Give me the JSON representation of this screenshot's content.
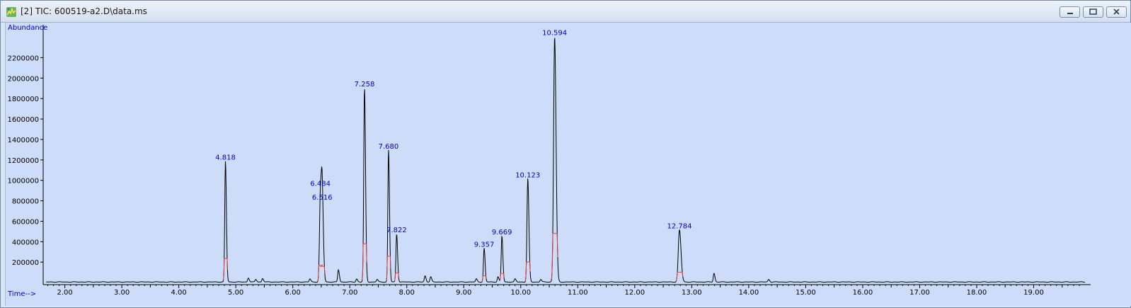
{
  "window": {
    "title": "[2] TIC: 600519-a2.D\\data.ms",
    "icon": "chromatogram-app-icon",
    "controls": [
      "minimize-icon",
      "maximize-icon",
      "close-icon"
    ]
  },
  "colors": {
    "background": "#cddcf8",
    "trace": "#000000",
    "baseline_marks": "#e04040",
    "labels": "#0000c8"
  },
  "chart_data": {
    "type": "line",
    "title": "",
    "xlabel": "Time-->",
    "ylabel": "Abundance",
    "xlim": [
      1.62,
      19.95
    ],
    "ylim": [
      -20000,
      2480000
    ],
    "x_ticks": [
      "2.00",
      "3.00",
      "4.00",
      "5.00",
      "6.00",
      "7.00",
      "8.00",
      "9.00",
      "10.00",
      "11.00",
      "12.00",
      "13.00",
      "14.00",
      "15.00",
      "16.00",
      "17.00",
      "18.00",
      "19.00"
    ],
    "x_tick_values": [
      2,
      3,
      4,
      5,
      6,
      7,
      8,
      9,
      10,
      11,
      12,
      13,
      14,
      15,
      16,
      17,
      18,
      19
    ],
    "y_ticks": [
      "200000",
      "400000",
      "600000",
      "800000",
      "1000000",
      "1200000",
      "1400000",
      "1600000",
      "1800000",
      "2000000",
      "2200000"
    ],
    "y_tick_values": [
      200000,
      400000,
      600000,
      800000,
      1000000,
      1200000,
      1400000,
      1600000,
      1800000,
      2000000,
      2200000
    ],
    "labeled_peaks": [
      {
        "rt": 4.818,
        "label": "4.818",
        "height": 1180000,
        "width": 0.012
      },
      {
        "rt": 6.484,
        "label": "6.484",
        "height": 850000,
        "width": 0.015
      },
      {
        "rt": 6.516,
        "label": "6.516",
        "height": 790000,
        "width": 0.015
      },
      {
        "rt": 7.258,
        "label": "7.258",
        "height": 1900000,
        "width": 0.013
      },
      {
        "rt": 7.68,
        "label": "7.680",
        "height": 1290000,
        "width": 0.012
      },
      {
        "rt": 7.822,
        "label": "7.822",
        "height": 470000,
        "width": 0.012
      },
      {
        "rt": 9.357,
        "label": "9.357",
        "height": 330000,
        "width": 0.012
      },
      {
        "rt": 9.669,
        "label": "9.669",
        "height": 450000,
        "width": 0.012
      },
      {
        "rt": 10.123,
        "label": "10.123",
        "height": 1010000,
        "width": 0.014
      },
      {
        "rt": 10.594,
        "label": "10.594",
        "height": 2400000,
        "width": 0.018
      },
      {
        "rt": 12.784,
        "label": "12.784",
        "height": 510000,
        "width": 0.02
      }
    ],
    "minor_peaks": [
      {
        "rt": 5.22,
        "height": 40000
      },
      {
        "rt": 5.35,
        "height": 25000
      },
      {
        "rt": 5.47,
        "height": 35000
      },
      {
        "rt": 6.3,
        "height": 30000
      },
      {
        "rt": 6.8,
        "height": 120000
      },
      {
        "rt": 7.12,
        "height": 30000
      },
      {
        "rt": 7.48,
        "height": 25000
      },
      {
        "rt": 8.32,
        "height": 60000
      },
      {
        "rt": 8.42,
        "height": 50000
      },
      {
        "rt": 9.22,
        "height": 30000
      },
      {
        "rt": 9.6,
        "height": 50000
      },
      {
        "rt": 9.9,
        "height": 30000
      },
      {
        "rt": 10.35,
        "height": 25000
      },
      {
        "rt": 13.39,
        "height": 85000
      },
      {
        "rt": 14.35,
        "height": 25000
      }
    ],
    "grid": false,
    "legend": "none"
  }
}
